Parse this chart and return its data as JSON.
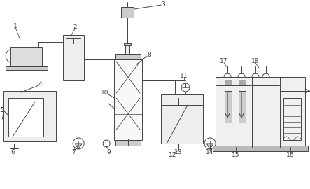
{
  "bg_color": "#ffffff",
  "lc": "#444444",
  "lw": 0.7,
  "fig_width": 4.43,
  "fig_height": 2.7,
  "dpi": 100
}
